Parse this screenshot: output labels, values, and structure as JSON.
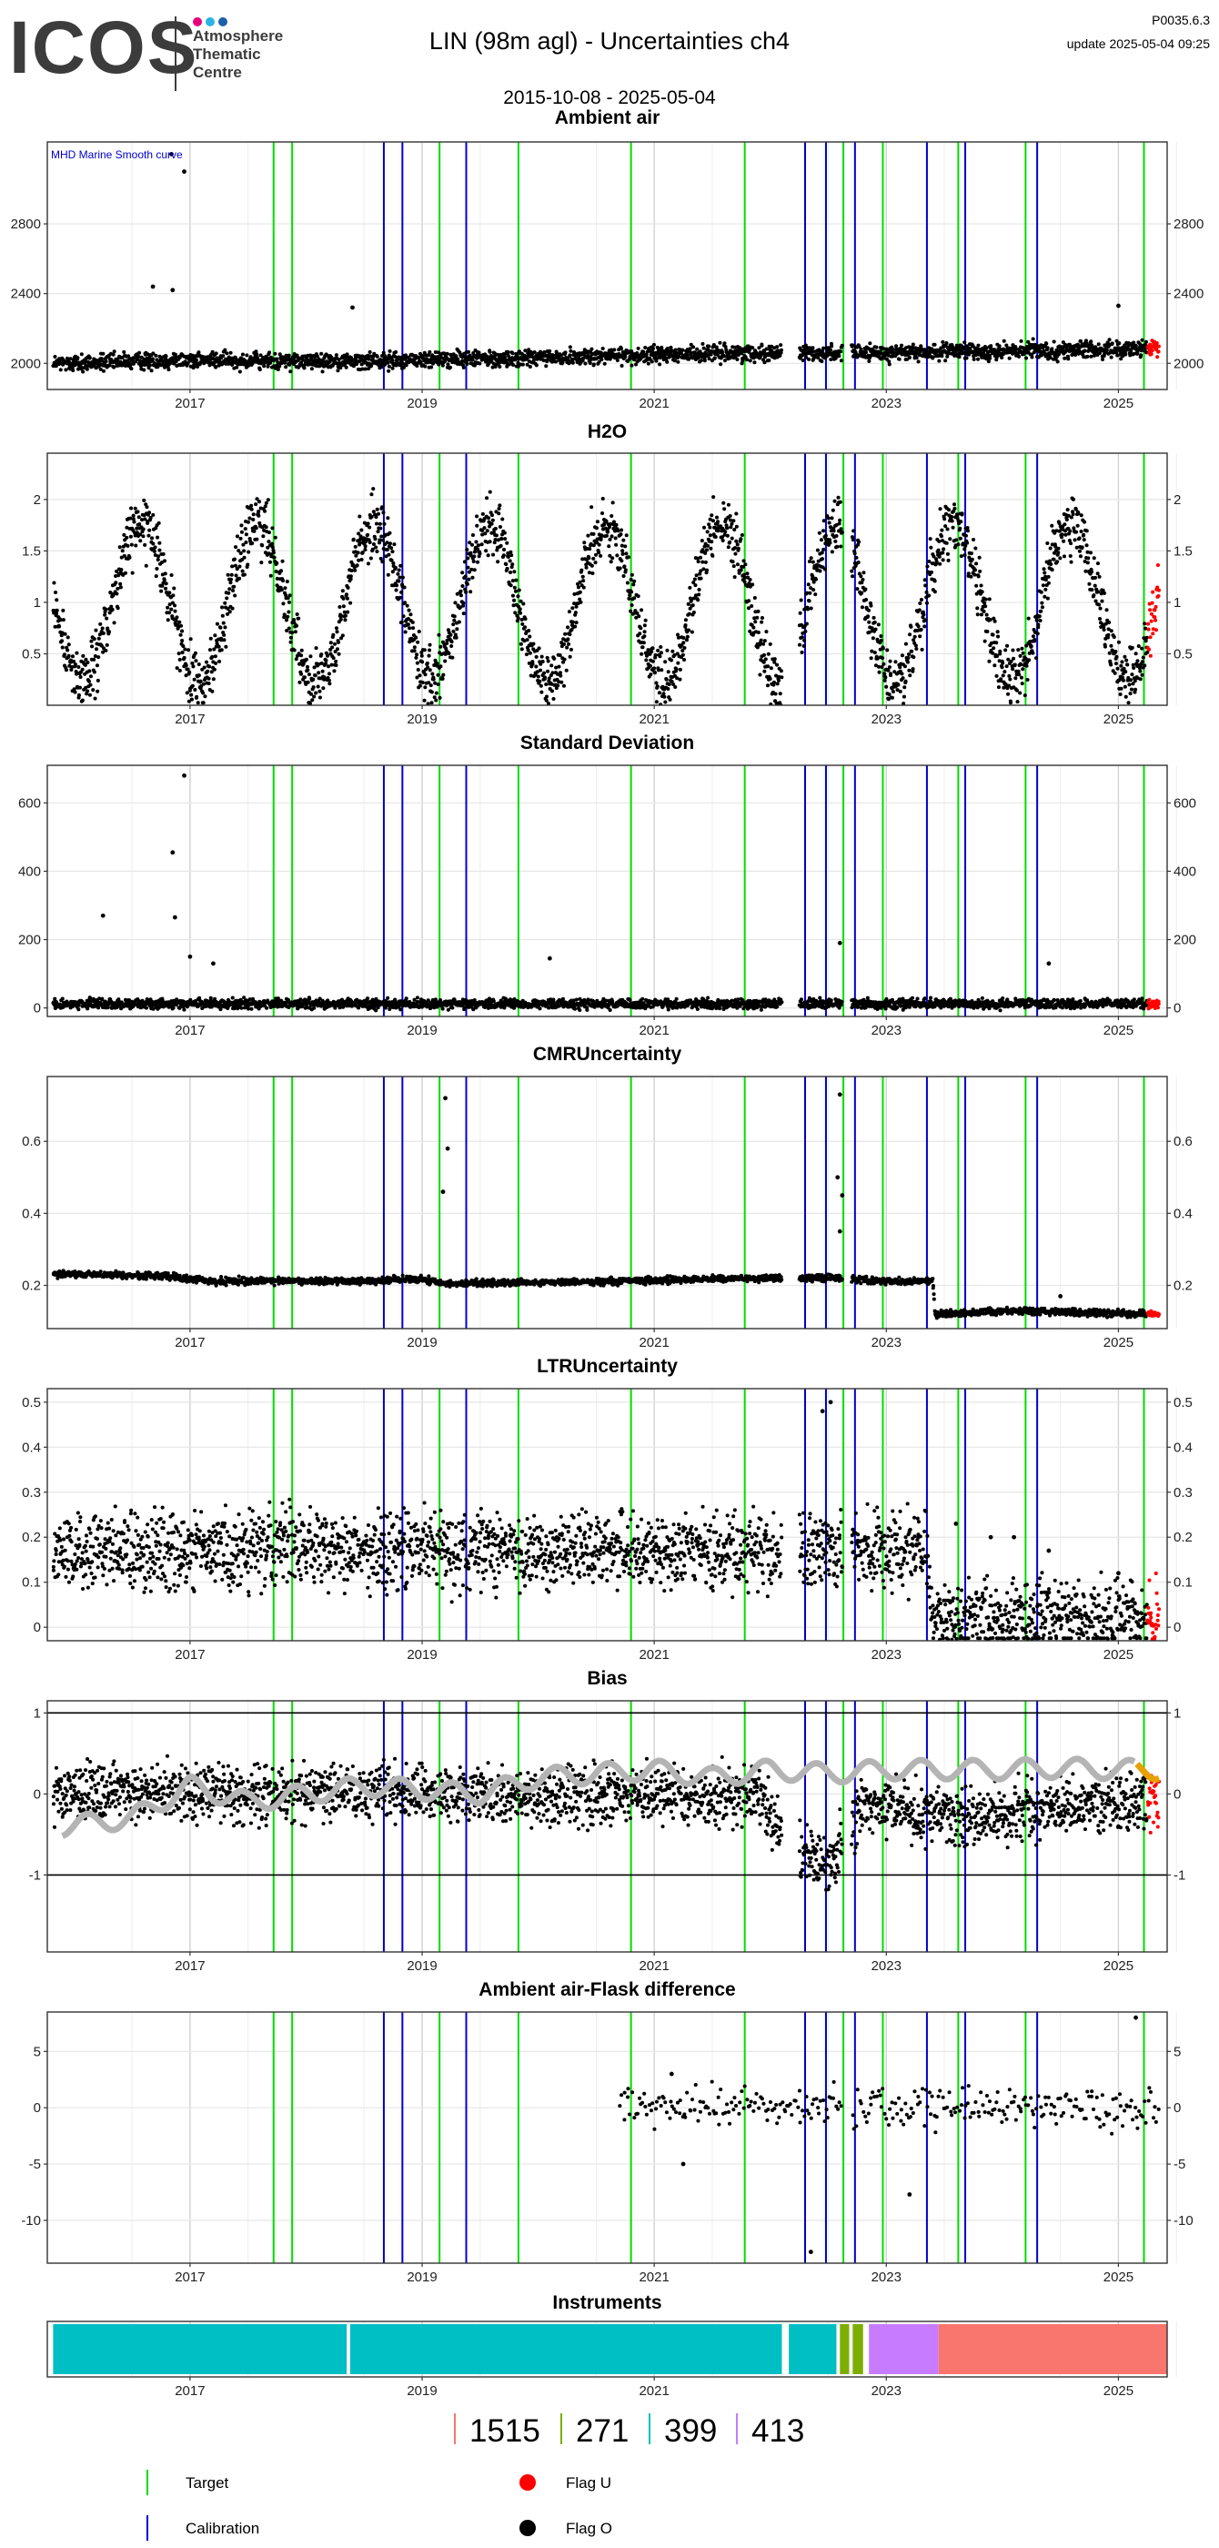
{
  "header": {
    "logo_text": "ICOS",
    "logo_subtitle": [
      "Atmosphere",
      "Thematic",
      "Centre"
    ],
    "logo_dot_colors": [
      "#e6007e",
      "#2bb2e6",
      "#1d5faa"
    ],
    "title": "LIN  (98m agl) - Uncertainties ch4",
    "period": "2015-10-08 - 2025-05-04",
    "version": "P0035.6.3",
    "update": "update  2025-05-04 09:25"
  },
  "colors": {
    "target": "#00dd00",
    "calibration": "#0000cc",
    "flag_u": "#ff0000",
    "flag_o": "#000000",
    "smooth": "#b4b4b4",
    "smooth_recent": "#e8a000",
    "grid": "#e6e6e6"
  },
  "events": {
    "target": [
      2017.72,
      2017.88,
      2019.15,
      2019.83,
      2020.8,
      2021.78,
      2022.48,
      2022.63,
      2022.97,
      2023.62,
      2024.2,
      2025.22
    ],
    "calibration": [
      2018.67,
      2018.83,
      2019.38,
      2022.3,
      2022.48,
      2022.73,
      2023.35,
      2023.68,
      2024.3
    ]
  },
  "chart_data": [
    {
      "type": "scatter",
      "title": "Ambient air",
      "annotation": "MHD Marine Smooth curve",
      "x_range": [
        2015.77,
        2025.42
      ],
      "ylim": [
        1850,
        3270
      ],
      "y_ticks": [
        2000,
        2400,
        2800
      ],
      "x_ticks": [
        2017,
        2019,
        2021,
        2023,
        2025
      ],
      "profile": [
        [
          2015.9,
          2000
        ],
        [
          2017.0,
          2020
        ],
        [
          2018.0,
          2010
        ],
        [
          2019.0,
          2020
        ],
        [
          2020.0,
          2030
        ],
        [
          2021.0,
          2050
        ],
        [
          2022.0,
          2060
        ],
        [
          2023.0,
          2060
        ],
        [
          2024.0,
          2070
        ],
        [
          2025.0,
          2080
        ],
        [
          2025.35,
          2080
        ]
      ],
      "spread": 40,
      "gaps": [
        [
          2022.1,
          2022.25
        ],
        [
          2022.62,
          2022.7
        ]
      ],
      "recent_flag_from": 2025.25,
      "outliers": [
        [
          2016.84,
          3200
        ],
        [
          2016.95,
          3100
        ],
        [
          2016.68,
          2440
        ],
        [
          2016.85,
          2420
        ],
        [
          2018.4,
          2320
        ],
        [
          2025.0,
          2330
        ]
      ]
    },
    {
      "type": "scatter",
      "title": "H2O",
      "x_range": [
        2015.77,
        2025.42
      ],
      "ylim": [
        0.0,
        2.45
      ],
      "y_ticks": [
        0.5,
        1.0,
        1.5,
        2.0
      ],
      "x_ticks": [
        2017,
        2019,
        2021,
        2023,
        2025
      ],
      "seasonal": {
        "base": 1.0,
        "amplitude": 0.75,
        "peak": 0.58
      },
      "spread": 0.25,
      "gaps": [
        [
          2022.1,
          2022.25
        ],
        [
          2022.62,
          2022.7
        ]
      ],
      "recent_flag_from": 2025.25
    },
    {
      "type": "scatter",
      "title": "Standard Deviation",
      "x_range": [
        2015.77,
        2025.42
      ],
      "ylim": [
        -25,
        710
      ],
      "y_ticks": [
        0,
        200,
        400,
        600
      ],
      "x_ticks": [
        2017,
        2019,
        2021,
        2023,
        2025
      ],
      "profile": [
        [
          2015.9,
          12
        ],
        [
          2025.35,
          12
        ]
      ],
      "spread": 12,
      "gaps": [
        [
          2022.1,
          2022.25
        ],
        [
          2022.62,
          2022.7
        ]
      ],
      "recent_flag_from": 2025.25,
      "outliers": [
        [
          2016.95,
          680
        ],
        [
          2016.85,
          455
        ],
        [
          2016.87,
          265
        ],
        [
          2016.25,
          270
        ],
        [
          2017.0,
          150
        ],
        [
          2017.2,
          130
        ],
        [
          2020.1,
          145
        ],
        [
          2022.6,
          190
        ],
        [
          2024.4,
          130
        ]
      ]
    },
    {
      "type": "scatter",
      "title": "CMRUncertainty",
      "x_range": [
        2015.77,
        2025.42
      ],
      "ylim": [
        0.08,
        0.78
      ],
      "y_ticks": [
        0.2,
        0.4,
        0.6
      ],
      "x_ticks": [
        2017,
        2019,
        2021,
        2023,
        2025
      ],
      "profile": [
        [
          2015.9,
          0.232
        ],
        [
          2016.8,
          0.225
        ],
        [
          2017.2,
          0.212
        ],
        [
          2018.5,
          0.212
        ],
        [
          2019.0,
          0.218
        ],
        [
          2019.2,
          0.205
        ],
        [
          2020.5,
          0.21
        ],
        [
          2021.5,
          0.218
        ],
        [
          2022.55,
          0.222
        ],
        [
          2022.9,
          0.212
        ],
        [
          2023.4,
          0.212
        ],
        [
          2023.42,
          0.118
        ],
        [
          2024.0,
          0.13
        ],
        [
          2025.35,
          0.12
        ]
      ],
      "spread": 0.008,
      "gaps": [
        [
          2022.1,
          2022.25
        ],
        [
          2022.62,
          2022.7
        ]
      ],
      "recent_flag_from": 2025.25,
      "outliers": [
        [
          2019.2,
          0.72
        ],
        [
          2019.22,
          0.58
        ],
        [
          2019.18,
          0.46
        ],
        [
          2022.6,
          0.73
        ],
        [
          2022.58,
          0.5
        ],
        [
          2022.62,
          0.45
        ],
        [
          2022.6,
          0.35
        ],
        [
          2024.5,
          0.17
        ]
      ]
    },
    {
      "type": "scatter",
      "title": "LTRUncertainty",
      "x_range": [
        2015.77,
        2025.42
      ],
      "ylim": [
        -0.03,
        0.53
      ],
      "y_ticks": [
        0.0,
        0.1,
        0.2,
        0.3,
        0.4,
        0.5
      ],
      "x_ticks": [
        2017,
        2019,
        2021,
        2023,
        2025
      ],
      "profile": [
        [
          2015.9,
          0.17
        ],
        [
          2023.35,
          0.17
        ],
        [
          2023.4,
          0.02
        ],
        [
          2025.35,
          0.02
        ]
      ],
      "spread": 0.07,
      "gaps": [
        [
          2022.1,
          2022.25
        ],
        [
          2022.62,
          2022.7
        ]
      ],
      "recent_flag_from": 2025.25,
      "outliers": [
        [
          2022.45,
          0.48
        ],
        [
          2022.52,
          0.5
        ],
        [
          2023.6,
          0.23
        ],
        [
          2023.9,
          0.2
        ],
        [
          2024.1,
          0.2
        ],
        [
          2024.4,
          0.17
        ],
        [
          2025.0,
          0.12
        ]
      ]
    },
    {
      "type": "scatter",
      "title": "Bias",
      "x_range": [
        2015.77,
        2025.42
      ],
      "ylim": [
        -1.95,
        1.15
      ],
      "y_ticks": [
        -1,
        0,
        1
      ],
      "hlines": [
        -1,
        1
      ],
      "x_ticks": [
        2017,
        2019,
        2021,
        2023,
        2025
      ],
      "profile": [
        [
          2015.9,
          0.0
        ],
        [
          2021.9,
          0.0
        ],
        [
          2022.1,
          -0.6
        ],
        [
          2022.5,
          -0.9
        ],
        [
          2022.8,
          -0.1
        ],
        [
          2023.6,
          -0.3
        ],
        [
          2023.8,
          -0.3
        ],
        [
          2024.5,
          -0.15
        ],
        [
          2025.35,
          -0.05
        ]
      ],
      "spread": 0.3,
      "gaps": [
        [
          2022.1,
          2022.25
        ],
        [
          2022.62,
          2022.7
        ]
      ],
      "recent_flag_from": 2025.25,
      "smooth_curve": [
        [
          2015.9,
          -0.4
        ],
        [
          2016.5,
          -0.3
        ],
        [
          2017.0,
          0.1
        ],
        [
          2017.5,
          -0.1
        ],
        [
          2018.0,
          0.0
        ],
        [
          2018.5,
          0.1
        ],
        [
          2019.0,
          0.05
        ],
        [
          2019.5,
          0.0
        ],
        [
          2020.0,
          0.2
        ],
        [
          2020.5,
          0.25
        ],
        [
          2021.0,
          0.3
        ],
        [
          2021.5,
          0.2
        ],
        [
          2022.0,
          0.3
        ],
        [
          2022.5,
          0.25
        ],
        [
          2023.0,
          0.3
        ],
        [
          2023.5,
          0.3
        ],
        [
          2024.0,
          0.3
        ],
        [
          2024.5,
          0.32
        ],
        [
          2025.0,
          0.3
        ],
        [
          2025.35,
          0.3
        ]
      ],
      "smooth_recent_from": 2025.15
    },
    {
      "type": "scatter",
      "title": "Ambient air-Flask difference",
      "x_range": [
        2015.77,
        2025.42
      ],
      "ylim": [
        -13.8,
        8.5
      ],
      "y_ticks": [
        -10,
        -5,
        0,
        5
      ],
      "x_ticks": [
        2017,
        2019,
        2021,
        2023,
        2025
      ],
      "sparse_from": 2020.7,
      "profile": [
        [
          2020.7,
          0.0
        ],
        [
          2025.35,
          0.0
        ]
      ],
      "spread": 1.5,
      "gaps": [
        [
          2022.62,
          2022.7
        ]
      ],
      "outliers": [
        [
          2021.15,
          3.0
        ],
        [
          2021.25,
          -5.0
        ],
        [
          2023.2,
          -7.7
        ],
        [
          2022.35,
          -12.8
        ],
        [
          2025.15,
          8.0
        ]
      ]
    },
    {
      "type": "bar",
      "title": "Instruments",
      "x_range": [
        2015.77,
        2025.42
      ],
      "x_ticks": [
        2017,
        2019,
        2021,
        2023,
        2025
      ],
      "segments": [
        {
          "start": 2015.82,
          "end": 2018.35,
          "instrument": "399"
        },
        {
          "start": 2018.38,
          "end": 2022.1,
          "instrument": "399"
        },
        {
          "start": 2022.16,
          "end": 2022.57,
          "instrument": "399"
        },
        {
          "start": 2022.6,
          "end": 2022.68,
          "instrument": "271"
        },
        {
          "start": 2022.71,
          "end": 2022.8,
          "instrument": "271"
        },
        {
          "start": 2022.85,
          "end": 2023.45,
          "instrument": "413"
        },
        {
          "start": 2023.45,
          "end": 2025.42,
          "instrument": "1515"
        }
      ]
    }
  ],
  "instruments_legend": [
    {
      "label": "1515",
      "color": "#f8766d"
    },
    {
      "label": "271",
      "color": "#7cae00"
    },
    {
      "label": "399",
      "color": "#00bfc4"
    },
    {
      "label": "413",
      "color": "#c77cff"
    }
  ],
  "legend": [
    {
      "label": "Target",
      "type": "vline",
      "color_key": "target"
    },
    {
      "label": "Flag U",
      "type": "dot",
      "color_key": "flag_u"
    },
    {
      "label": "Calibration",
      "type": "vline",
      "color_key": "calibration"
    },
    {
      "label": "Flag O",
      "type": "dot",
      "color_key": "flag_o"
    }
  ]
}
